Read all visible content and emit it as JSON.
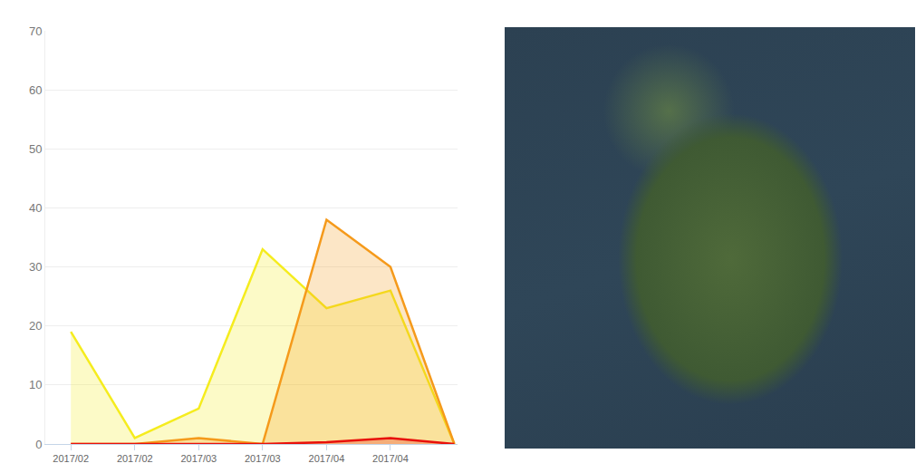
{
  "chart_data": {
    "type": "line",
    "categories": [
      "2017/02",
      "2017/02",
      "2017/03",
      "2017/03",
      "2017/04",
      "2017/04",
      null
    ],
    "series": [
      {
        "color": "#f5ec1e",
        "values": [
          19,
          1,
          6,
          33,
          23,
          26,
          0
        ]
      },
      {
        "color": "#f59a1b",
        "values": [
          0,
          0,
          1,
          0,
          38,
          30,
          0
        ]
      },
      {
        "color": "#e8100b",
        "values": [
          0,
          0,
          0,
          0,
          0.3,
          1,
          0
        ]
      }
    ],
    "ylim": [
      0,
      70
    ],
    "yticks": [
      0,
      10,
      20,
      30,
      40,
      50,
      60,
      70
    ],
    "grid": true
  }
}
